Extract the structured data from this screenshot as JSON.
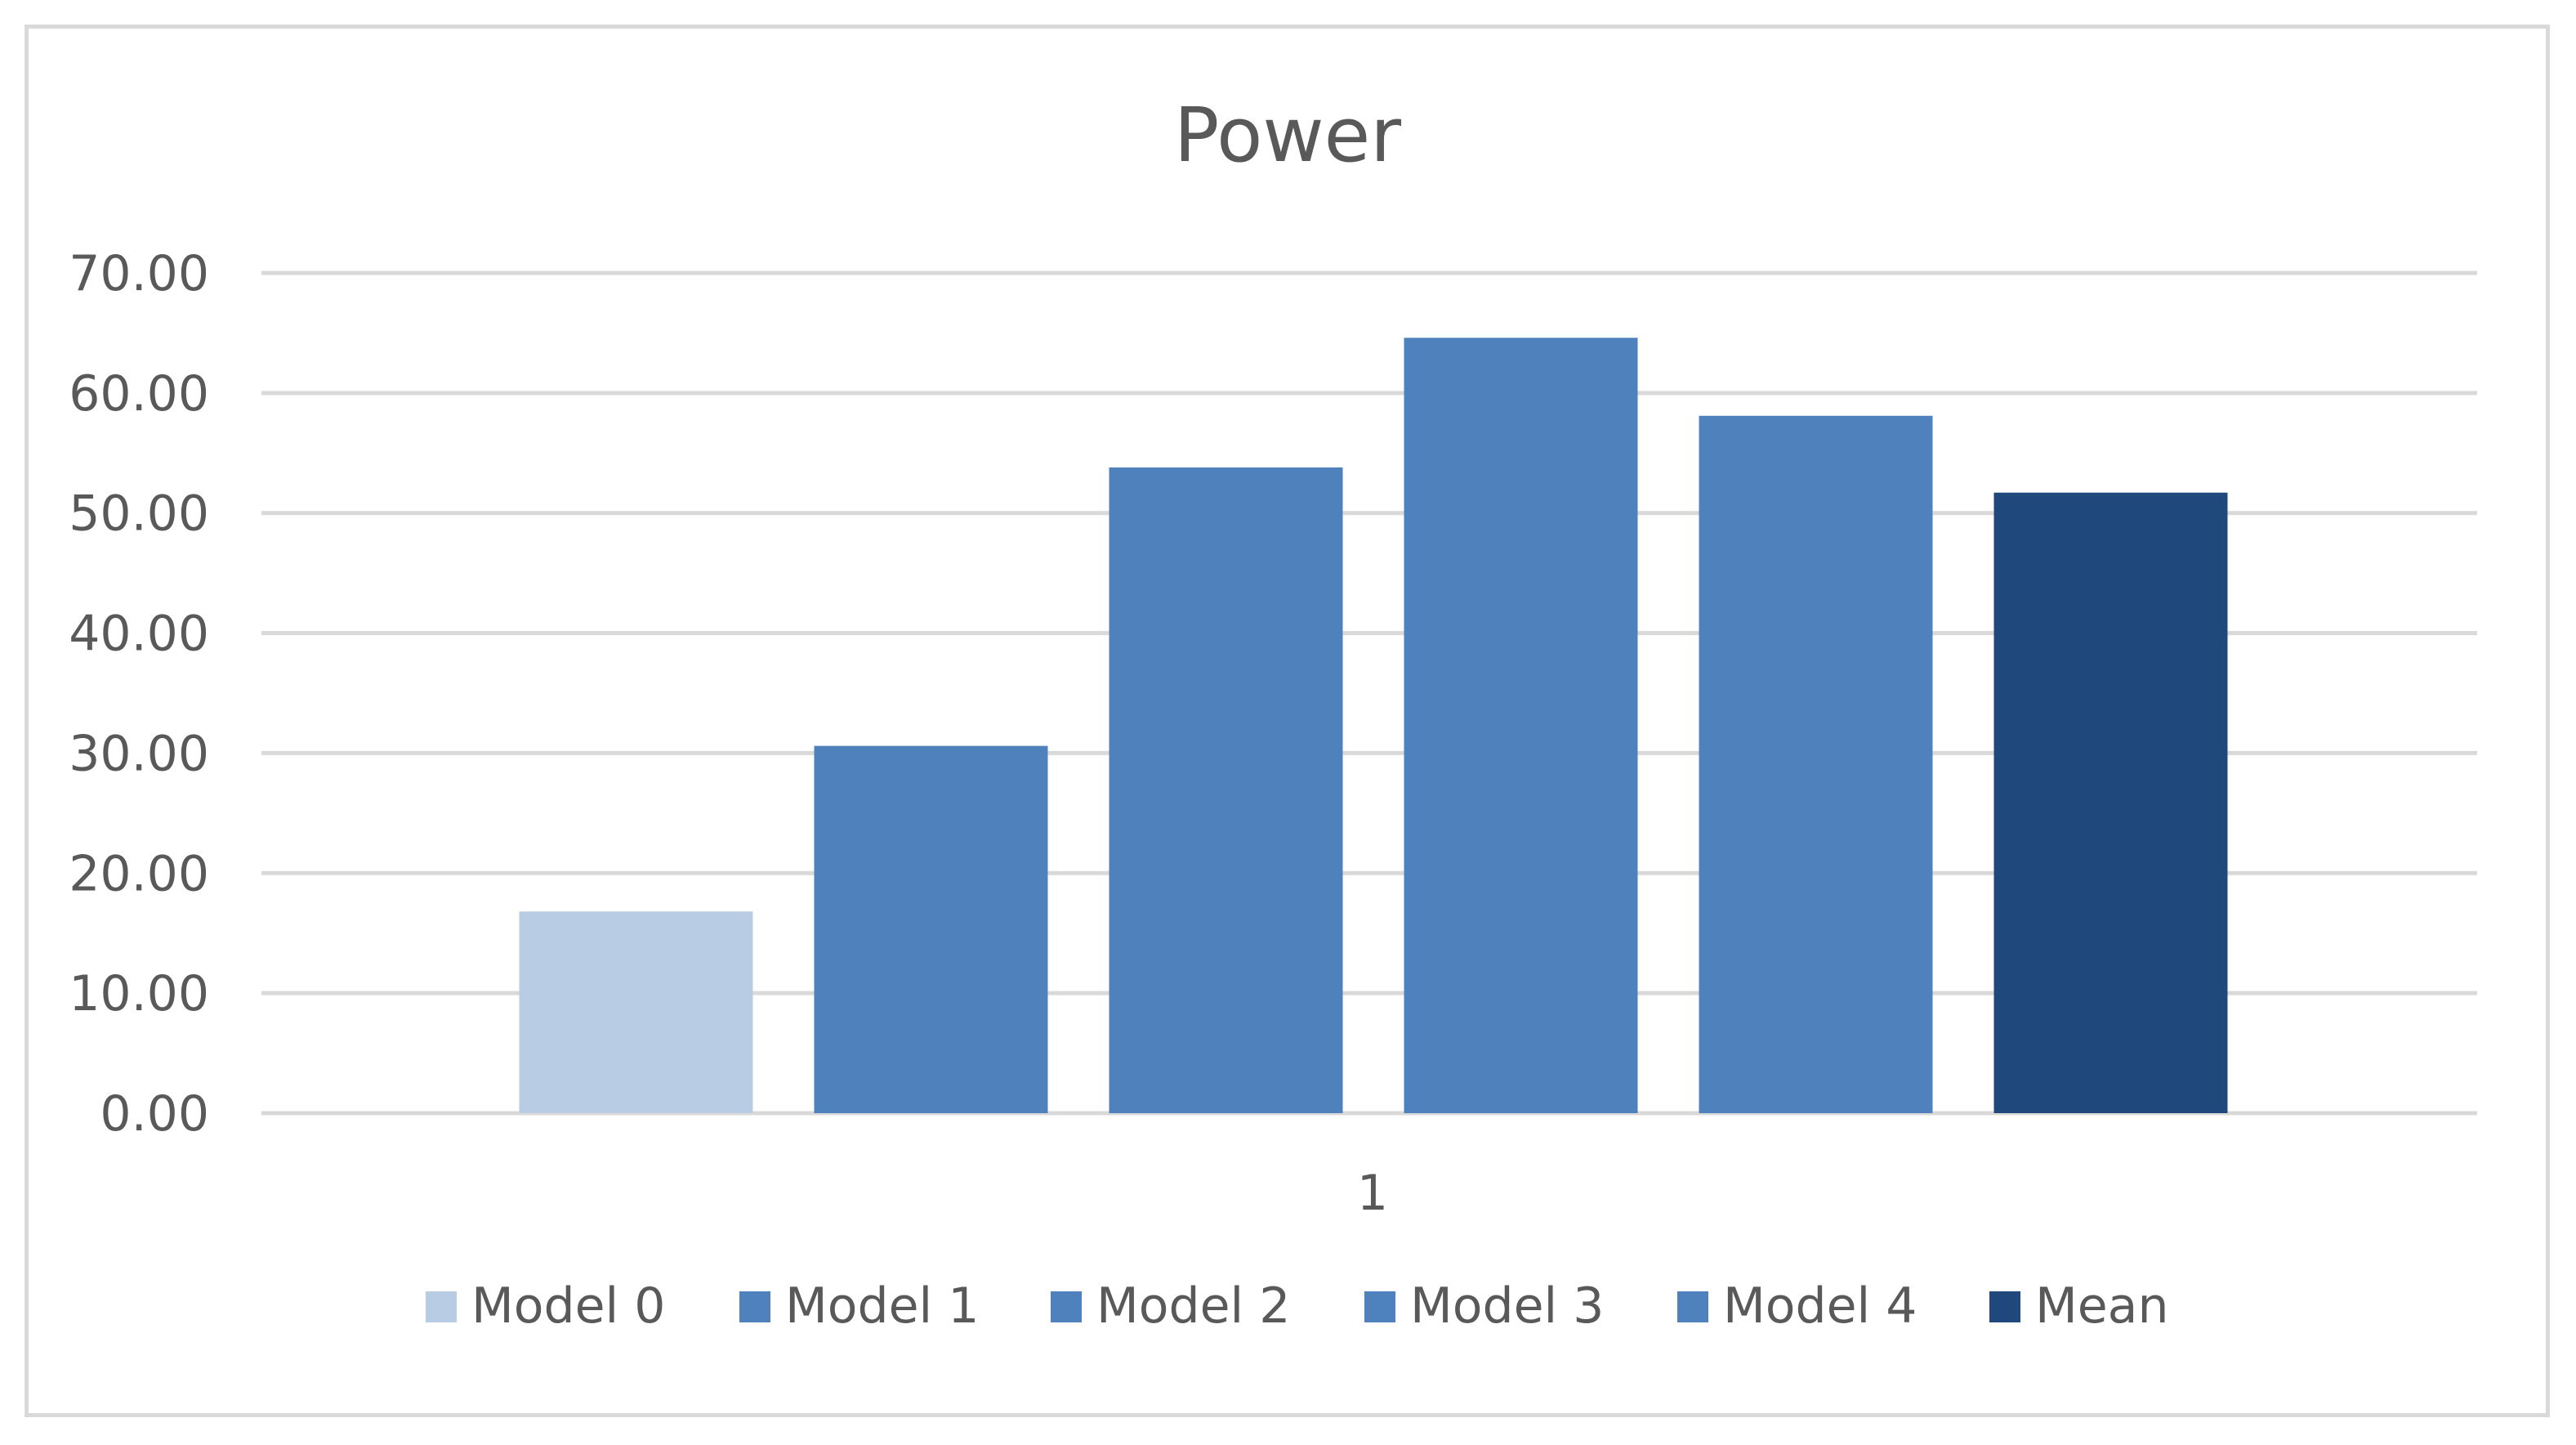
{
  "chart_data": {
    "type": "bar",
    "title": "Power",
    "xlabel": "",
    "ylabel": "",
    "categories": [
      "1"
    ],
    "ylim": [
      0,
      70
    ],
    "yticks": [
      "0.00",
      "10.00",
      "20.00",
      "30.00",
      "40.00",
      "50.00",
      "60.00",
      "70.00"
    ],
    "grid": true,
    "legend_position": "bottom",
    "series": [
      {
        "name": "Model 0",
        "values": [
          16.8
        ],
        "color": "#b8cce4"
      },
      {
        "name": "Model 1",
        "values": [
          30.6
        ],
        "color": "#4f81bd"
      },
      {
        "name": "Model 2",
        "values": [
          53.8
        ],
        "color": "#4f81bd"
      },
      {
        "name": "Model 3",
        "values": [
          64.6
        ],
        "color": "#4f81bd"
      },
      {
        "name": "Model 4",
        "values": [
          58.1
        ],
        "color": "#4f81bd"
      },
      {
        "name": "Mean",
        "values": [
          51.7
        ],
        "color": "#1f497d"
      }
    ],
    "gridline_color": "#d9d9d9"
  }
}
